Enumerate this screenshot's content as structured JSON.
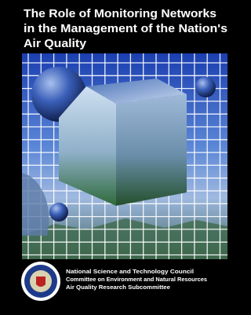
{
  "title": [
    "The Role of Monitoring Networks",
    "in the Management of the Nation's",
    "Air Quality"
  ],
  "publisher": [
    "National Science and Technology Council",
    "Committee on Environment and Natural Resources",
    "Air Quality Research Subcommittee"
  ]
}
